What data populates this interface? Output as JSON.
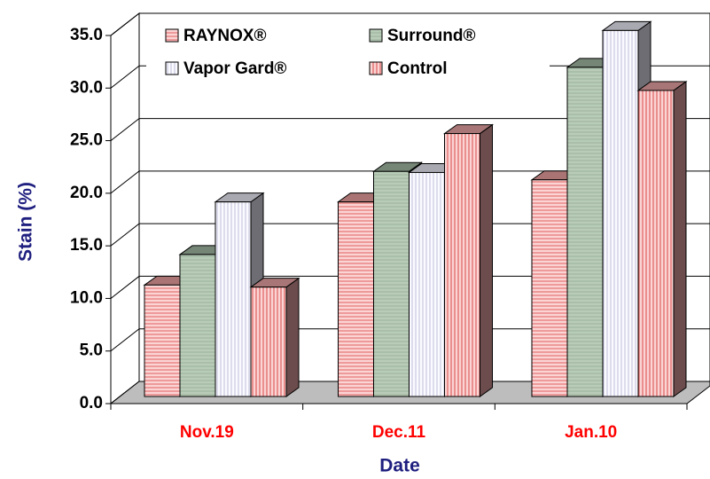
{
  "chart_data": {
    "type": "bar3d",
    "categories": [
      "Nov.19",
      "Dec.11",
      "Jan.10"
    ],
    "series": [
      {
        "name": "RAYNOX®",
        "color": "#f4a6a6",
        "values": [
          10.6,
          18.5,
          20.6
        ]
      },
      {
        "name": "Surround®",
        "color": "#a9bfa9",
        "values": [
          13.5,
          21.4,
          31.3
        ]
      },
      {
        "name": "Vapor Gard®",
        "color": "#f2f2ff",
        "values": [
          18.5,
          21.3,
          34.8
        ]
      },
      {
        "name": "Control",
        "color": "#f0a8a8",
        "values": [
          10.4,
          25.0,
          29.1
        ]
      }
    ],
    "xlabel": "Date",
    "ylabel": "Stain (%)",
    "ylim": [
      0,
      35
    ],
    "yticks": [
      {
        "value": 0,
        "label": "0.0"
      },
      {
        "value": 5,
        "label": "5.0"
      },
      {
        "value": 10,
        "label": "10.0"
      },
      {
        "value": 15,
        "label": "15.0"
      },
      {
        "value": 20,
        "label": "20.0"
      },
      {
        "value": 25,
        "label": "25.0"
      },
      {
        "value": 30,
        "label": "30.0"
      },
      {
        "value": 35,
        "label": "35.0"
      }
    ],
    "grid": true,
    "legend": "top"
  }
}
